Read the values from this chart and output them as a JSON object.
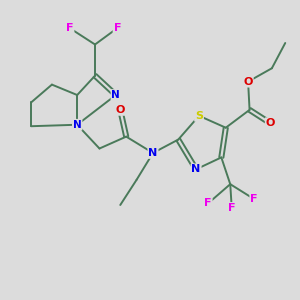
{
  "bg_color": "#dcdcdc",
  "bond_color": "#4a7a5a",
  "atom_colors": {
    "N": "#0000ee",
    "O": "#dd0000",
    "S": "#cccc00",
    "F": "#ee00ee",
    "C": "#4a7a5a"
  },
  "lw": 1.4
}
